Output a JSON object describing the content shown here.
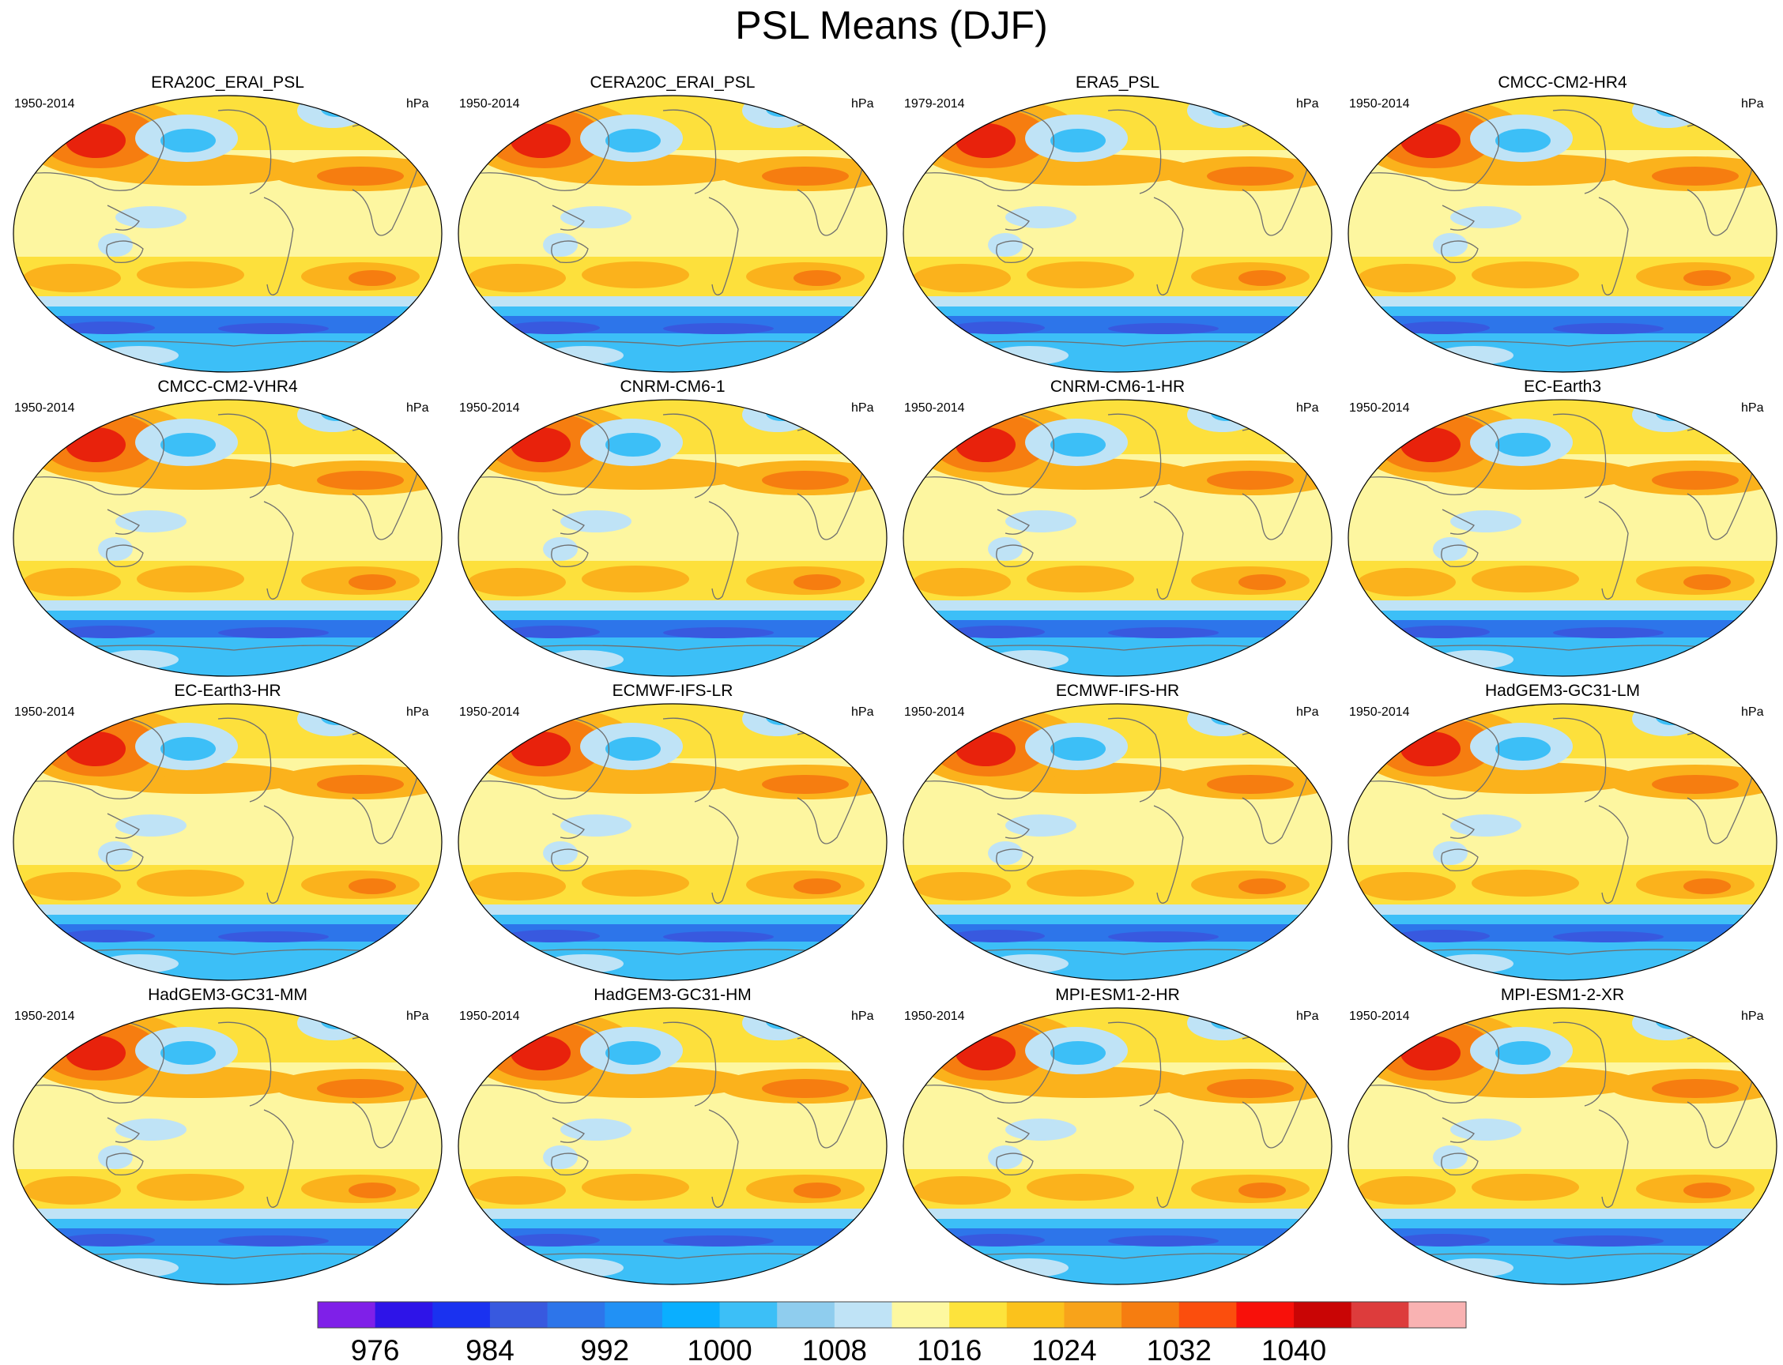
{
  "title": "PSL Means (DJF)",
  "panels": [
    {
      "title": "ERA20C_ERAI_PSL",
      "period": "1950-2014",
      "units": "hPa"
    },
    {
      "title": "CERA20C_ERAI_PSL",
      "period": "1950-2014",
      "units": "hPa"
    },
    {
      "title": "ERA5_PSL",
      "period": "1979-2014",
      "units": "hPa"
    },
    {
      "title": "CMCC-CM2-HR4",
      "period": "1950-2014",
      "units": "hPa"
    },
    {
      "title": "CMCC-CM2-VHR4",
      "period": "1950-2014",
      "units": "hPa"
    },
    {
      "title": "CNRM-CM6-1",
      "period": "1950-2014",
      "units": "hPa"
    },
    {
      "title": "CNRM-CM6-1-HR",
      "period": "1950-2014",
      "units": "hPa"
    },
    {
      "title": "EC-Earth3",
      "period": "1950-2014",
      "units": "hPa"
    },
    {
      "title": "EC-Earth3-HR",
      "period": "1950-2014",
      "units": "hPa"
    },
    {
      "title": "ECMWF-IFS-LR",
      "period": "1950-2014",
      "units": "hPa"
    },
    {
      "title": "ECMWF-IFS-HR",
      "period": "1950-2014",
      "units": "hPa"
    },
    {
      "title": "HadGEM3-GC31-LM",
      "period": "1950-2014",
      "units": "hPa"
    },
    {
      "title": "HadGEM3-GC31-MM",
      "period": "1950-2014",
      "units": "hPa"
    },
    {
      "title": "HadGEM3-GC31-HM",
      "period": "1950-2014",
      "units": "hPa"
    },
    {
      "title": "MPI-ESM1-2-HR",
      "period": "1950-2014",
      "units": "hPa"
    },
    {
      "title": "MPI-ESM1-2-XR",
      "period": "1950-2014",
      "units": "hPa"
    }
  ],
  "colorbar": {
    "colors": [
      "#7f20e8",
      "#2e14e8",
      "#1a32f0",
      "#3859df",
      "#2d75ea",
      "#2191f5",
      "#0aafff",
      "#3cbff7",
      "#8fcdee",
      "#bfe3f6",
      "#fdf8a0",
      "#fde33c",
      "#fbc21c",
      "#f8a31a",
      "#f67d10",
      "#fb4e0d",
      "#f8100a",
      "#c90505",
      "#dd3c3c",
      "#f9b2b2"
    ],
    "labels": [
      {
        "text": "976",
        "after": 1
      },
      {
        "text": "984",
        "after": 3
      },
      {
        "text": "992",
        "after": 5
      },
      {
        "text": "1000",
        "after": 7
      },
      {
        "text": "1008",
        "after": 9
      },
      {
        "text": "1016",
        "after": 11
      },
      {
        "text": "1024",
        "after": 13
      },
      {
        "text": "1032",
        "after": 15
      },
      {
        "text": "1040",
        "after": 17
      }
    ]
  },
  "map_colors": {
    "land_outline": "#6f6f6f",
    "high_core": "#e8220c",
    "high": "#f67d10",
    "mid_high": "#fbb21c",
    "mid": "#fde03c",
    "tropics": "#fdf6a0",
    "low_light": "#bfe3f6",
    "low": "#3cbff7",
    "low_deep": "#2d75ea",
    "low_core": "#3859df"
  }
}
